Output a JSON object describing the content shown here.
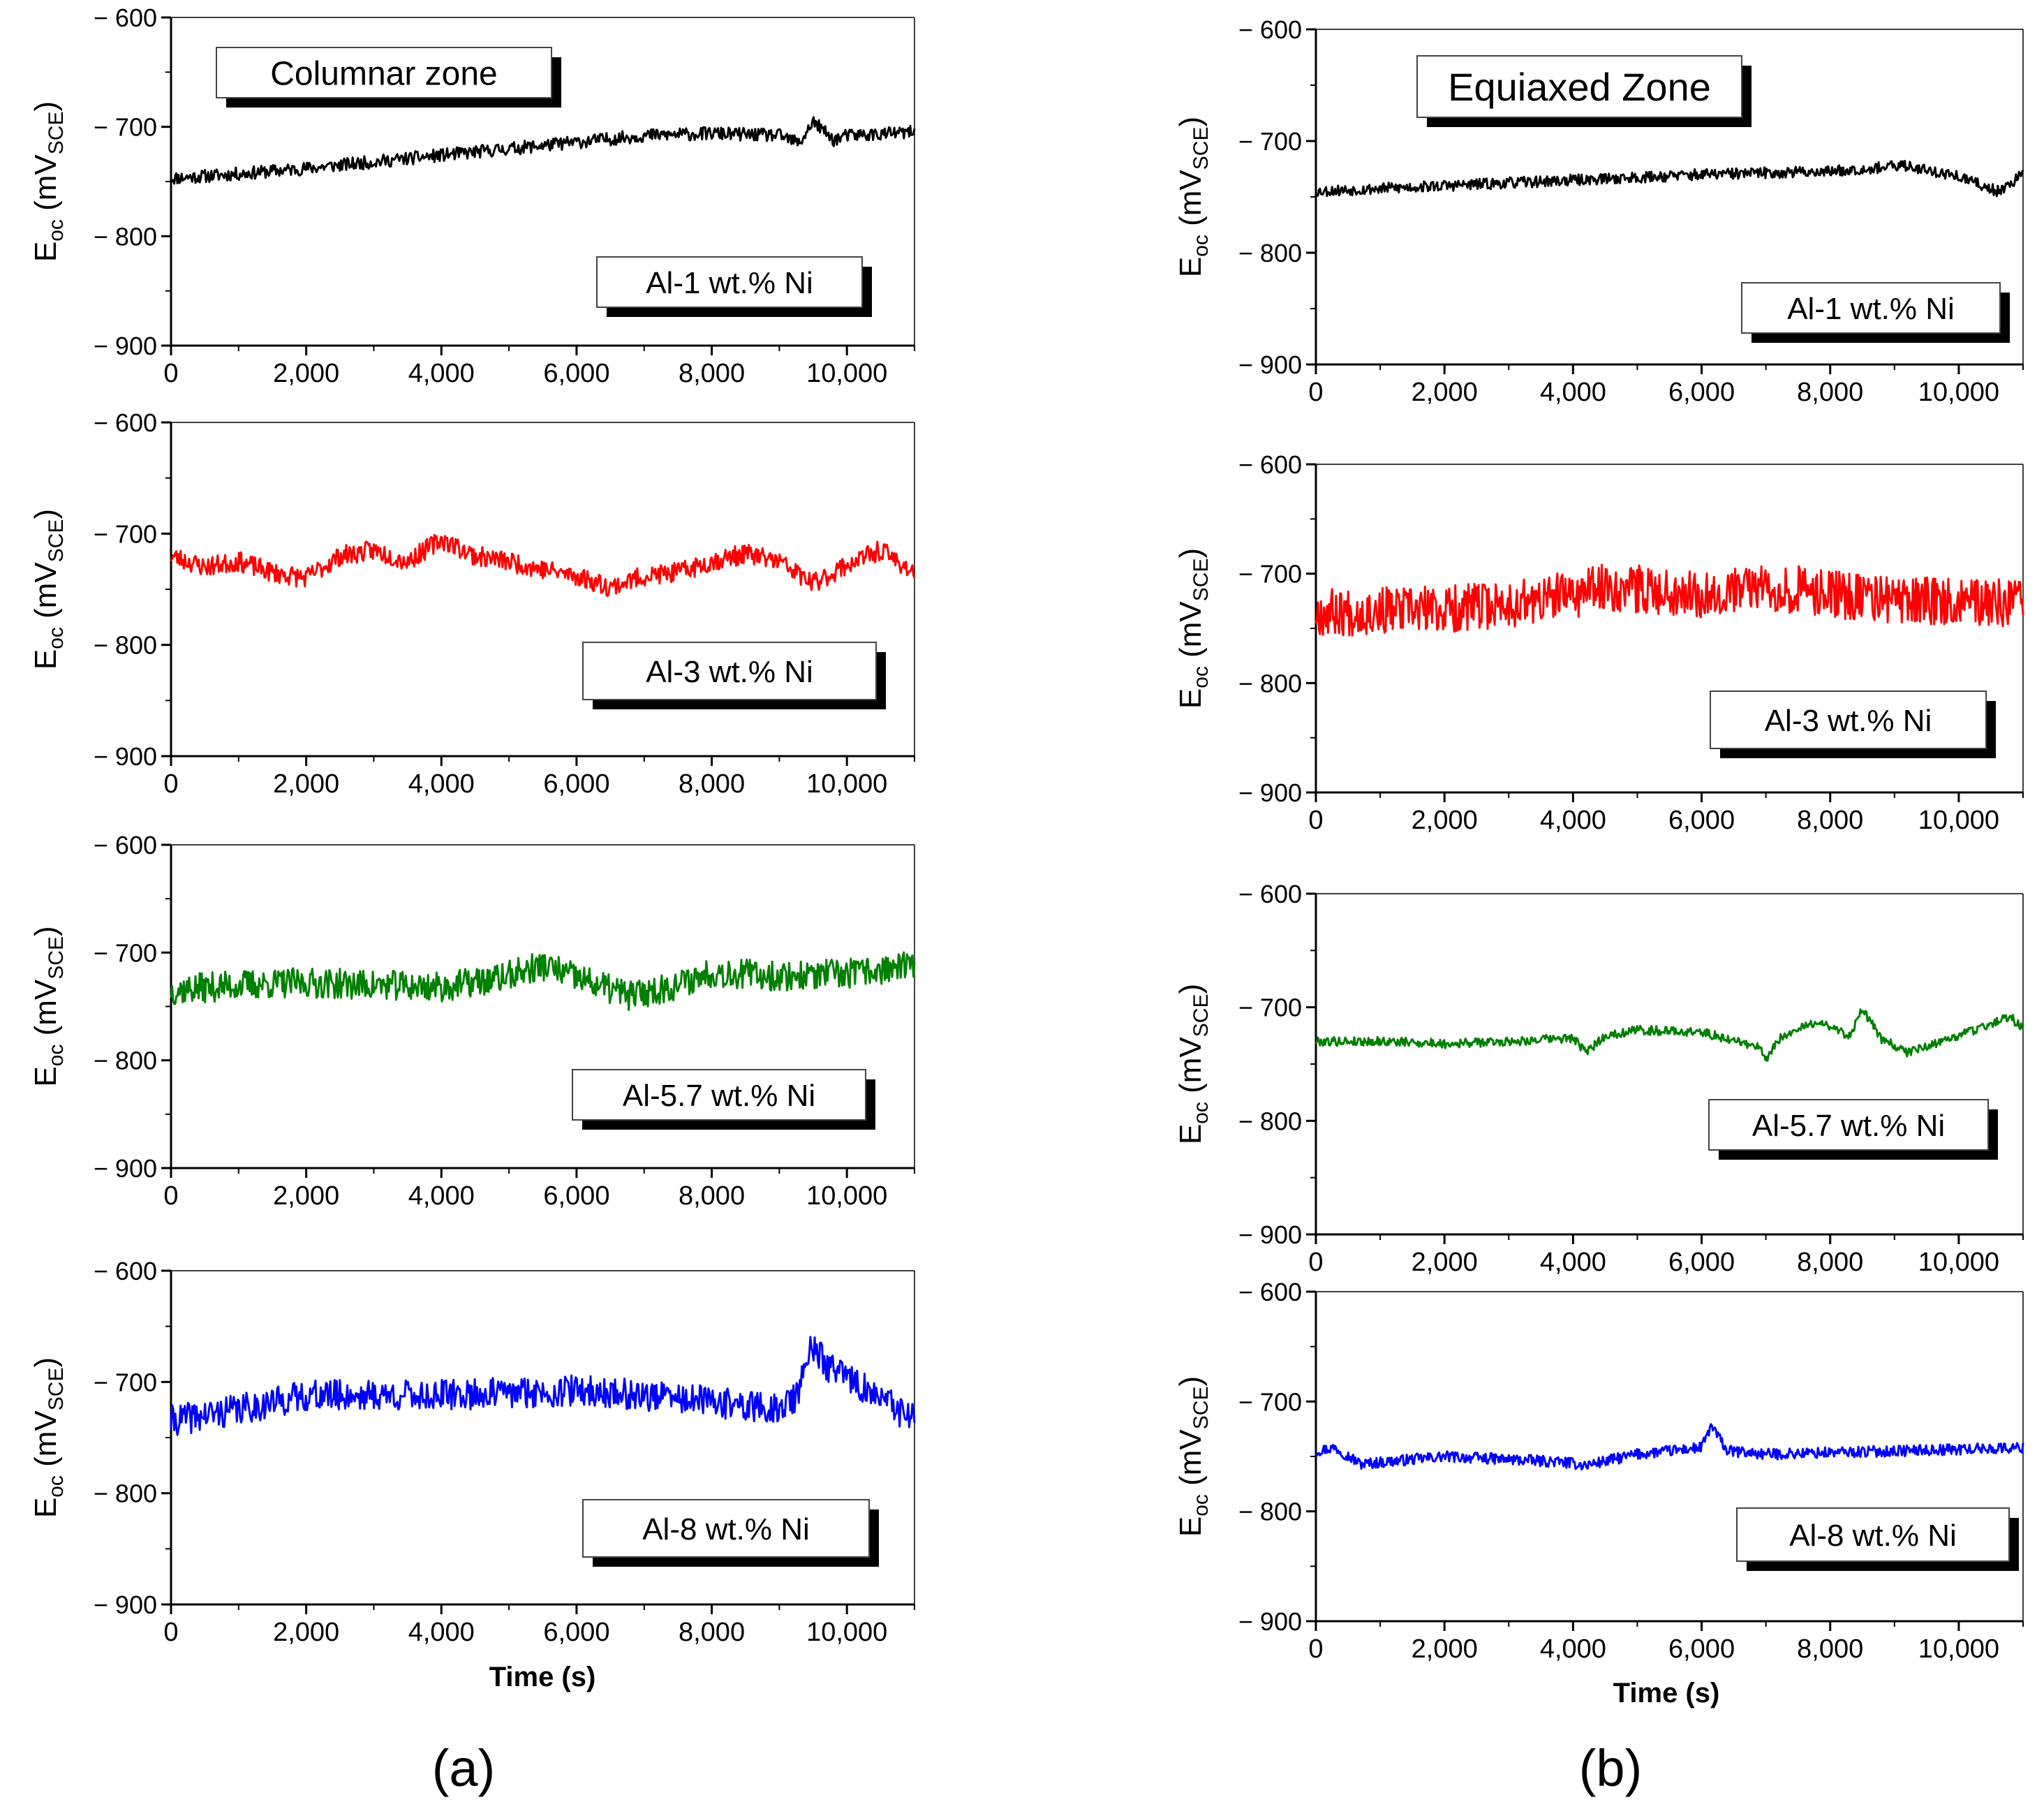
{
  "figure": {
    "panel_labels": [
      "(a)",
      "(b)"
    ],
    "xlabel": "Time (s)",
    "ylabel_main": "E",
    "ylabel_sub": "oc",
    "ylabel_unit": "(mV",
    "ylabel_unit_sub": "SCE",
    "ylabel_close": ")"
  },
  "chart_data": [
    {
      "type": "line",
      "panel": "a",
      "row": 0,
      "zone_label": "Columnar zone",
      "series_label": "Al-1 wt.% Ni",
      "color": "#000000",
      "xlim": [
        0,
        11000
      ],
      "ylim": [
        -900,
        -600
      ],
      "xticks": [
        "0",
        "2,000",
        "4,000",
        "6,000",
        "8,000",
        "10,000"
      ],
      "yticks": [
        "− 600",
        "− 700",
        "− 800",
        "− 900"
      ],
      "series": [
        {
          "name": "Al-1 wt.% Ni",
          "x": [
            0,
            1000,
            2000,
            3000,
            4000,
            5000,
            6000,
            7000,
            8000,
            9000,
            9300,
            9500,
            9800,
            10000,
            11000
          ],
          "y": [
            -747,
            -743,
            -738,
            -732,
            -726,
            -720,
            -714,
            -708,
            -706,
            -708,
            -715,
            -695,
            -712,
            -708,
            -705
          ]
        }
      ],
      "noise": 6,
      "seed": 11
    },
    {
      "type": "line",
      "panel": "a",
      "row": 1,
      "series_label": "Al-3 wt.% Ni",
      "color": "#ff0000",
      "xlim": [
        0,
        11000
      ],
      "ylim": [
        -900,
        -600
      ],
      "xticks": [
        "0",
        "2,000",
        "4,000",
        "6,000",
        "8,000",
        "10,000"
      ],
      "yticks": [
        "− 600",
        "− 700",
        "− 800",
        "− 900"
      ],
      "series": [
        {
          "name": "Al-3 wt.% Ni",
          "x": [
            0,
            500,
            1000,
            1500,
            2000,
            2500,
            3000,
            3500,
            4000,
            4500,
            5000,
            5500,
            6000,
            6500,
            7000,
            7500,
            8000,
            8500,
            9000,
            9500,
            10000,
            10500,
            11000
          ],
          "y": [
            -720,
            -730,
            -725,
            -735,
            -740,
            -720,
            -715,
            -725,
            -705,
            -720,
            -725,
            -732,
            -738,
            -748,
            -738,
            -735,
            -725,
            -718,
            -725,
            -745,
            -728,
            -715,
            -735
          ]
        }
      ],
      "noise": 9,
      "seed": 23
    },
    {
      "type": "line",
      "panel": "a",
      "row": 2,
      "series_label": "Al-5.7 wt.% Ni",
      "color": "#008000",
      "xlim": [
        0,
        11000
      ],
      "ylim": [
        -900,
        -600
      ],
      "xticks": [
        "0",
        "2,000",
        "4,000",
        "6,000",
        "8,000",
        "10,000"
      ],
      "yticks": [
        "− 600",
        "− 700",
        "− 800",
        "− 900"
      ],
      "series": [
        {
          "name": "Al-5.7 wt.% Ni",
          "x": [
            0,
            1000,
            2000,
            3000,
            4000,
            4800,
            5500,
            6200,
            6800,
            7500,
            8000,
            9000,
            10000,
            11000
          ],
          "y": [
            -735,
            -730,
            -728,
            -730,
            -732,
            -725,
            -712,
            -728,
            -740,
            -730,
            -718,
            -722,
            -720,
            -712
          ]
        }
      ],
      "noise": 14,
      "seed": 37
    },
    {
      "type": "line",
      "panel": "a",
      "row": 3,
      "series_label": "Al-8 wt.% Ni",
      "color": "#0000ff",
      "xlim": [
        0,
        11000
      ],
      "ylim": [
        -900,
        -600
      ],
      "xticks": [
        "0",
        "2,000",
        "4,000",
        "6,000",
        "8,000",
        "10,000"
      ],
      "yticks": [
        "− 600",
        "− 700",
        "− 800",
        "− 900"
      ],
      "series": [
        {
          "name": "Al-8 wt.% Ni",
          "x": [
            0,
            1000,
            2000,
            3000,
            4000,
            5000,
            6000,
            7000,
            8000,
            9000,
            9300,
            9450,
            9700,
            10500,
            11000
          ],
          "y": [
            -735,
            -725,
            -712,
            -712,
            -712,
            -710,
            -708,
            -712,
            -718,
            -725,
            -710,
            -665,
            -685,
            -715,
            -735
          ]
        }
      ],
      "noise": 14,
      "seed": 41
    },
    {
      "type": "line",
      "panel": "b",
      "row": 0,
      "zone_label": "Equiaxed Zone",
      "series_label": "Al-1 wt.% Ni",
      "color": "#000000",
      "xlim": [
        0,
        11000
      ],
      "ylim": [
        -900,
        -600
      ],
      "xticks": [
        "0",
        "2,000",
        "4,000",
        "6,000",
        "8,000",
        "10,000"
      ],
      "yticks": [
        "− 600",
        "− 700",
        "− 800",
        "− 900"
      ],
      "series": [
        {
          "name": "Al-1 wt.% Ni",
          "x": [
            0,
            2000,
            4000,
            6000,
            8000,
            9200,
            10000,
            10600,
            11000
          ],
          "y": [
            -745,
            -740,
            -735,
            -730,
            -727,
            -722,
            -732,
            -745,
            -730
          ]
        }
      ],
      "noise": 5,
      "seed": 53
    },
    {
      "type": "line",
      "panel": "b",
      "row": 1,
      "series_label": "Al-3 wt.% Ni",
      "color": "#ff0000",
      "xlim": [
        0,
        11000
      ],
      "ylim": [
        -900,
        -600
      ],
      "xticks": [
        "0",
        "2,000",
        "4,000",
        "6,000",
        "8,000",
        "10,000"
      ],
      "yticks": [
        "− 600",
        "− 700",
        "− 800",
        "− 900"
      ],
      "series": [
        {
          "name": "Al-3 wt.% Ni",
          "x": [
            0,
            2000,
            3500,
            4500,
            6000,
            7000,
            8000,
            9000,
            10000,
            11000
          ],
          "y": [
            -735,
            -733,
            -725,
            -712,
            -718,
            -712,
            -718,
            -725,
            -725,
            -728
          ]
        }
      ],
      "noise": 22,
      "seed": 67
    },
    {
      "type": "line",
      "panel": "b",
      "row": 2,
      "series_label": "Al-5.7 wt.% Ni",
      "color": "#008000",
      "xlim": [
        0,
        11000
      ],
      "ylim": [
        -900,
        -600
      ],
      "xticks": [
        "0",
        "2,000",
        "4,000",
        "6,000",
        "8,000",
        "10,000"
      ],
      "yticks": [
        "− 600",
        "− 700",
        "− 800",
        "− 900"
      ],
      "series": [
        {
          "name": "Al-5.7 wt.% Ni",
          "x": [
            0,
            1000,
            2000,
            3000,
            4000,
            4200,
            4500,
            5000,
            6000,
            6900,
            7000,
            7200,
            7800,
            8300,
            8500,
            8800,
            9200,
            10000,
            10800,
            11000
          ],
          "y": [
            -730,
            -730,
            -732,
            -730,
            -727,
            -740,
            -725,
            -720,
            -722,
            -735,
            -748,
            -728,
            -712,
            -725,
            -702,
            -728,
            -740,
            -725,
            -708,
            -720
          ]
        }
      ],
      "noise": 4,
      "seed": 79
    },
    {
      "type": "line",
      "panel": "b",
      "row": 3,
      "series_label": "Al-8 wt.% Ni",
      "color": "#0000ff",
      "xlim": [
        0,
        11000
      ],
      "ylim": [
        -900,
        -600
      ],
      "xticks": [
        "0",
        "2,000",
        "4,000",
        "6,000",
        "8,000",
        "10,000"
      ],
      "yticks": [
        "− 600",
        "− 700",
        "− 800",
        "− 900"
      ],
      "series": [
        {
          "name": "Al-8 wt.% Ni",
          "x": [
            0,
            300,
            700,
            2000,
            3800,
            4200,
            5000,
            6000,
            6150,
            6400,
            7000,
            9000,
            11000
          ],
          "y": [
            -745,
            -742,
            -757,
            -750,
            -755,
            -758,
            -748,
            -742,
            -722,
            -745,
            -748,
            -745,
            -742
          ]
        }
      ],
      "noise": 5,
      "seed": 97
    }
  ]
}
